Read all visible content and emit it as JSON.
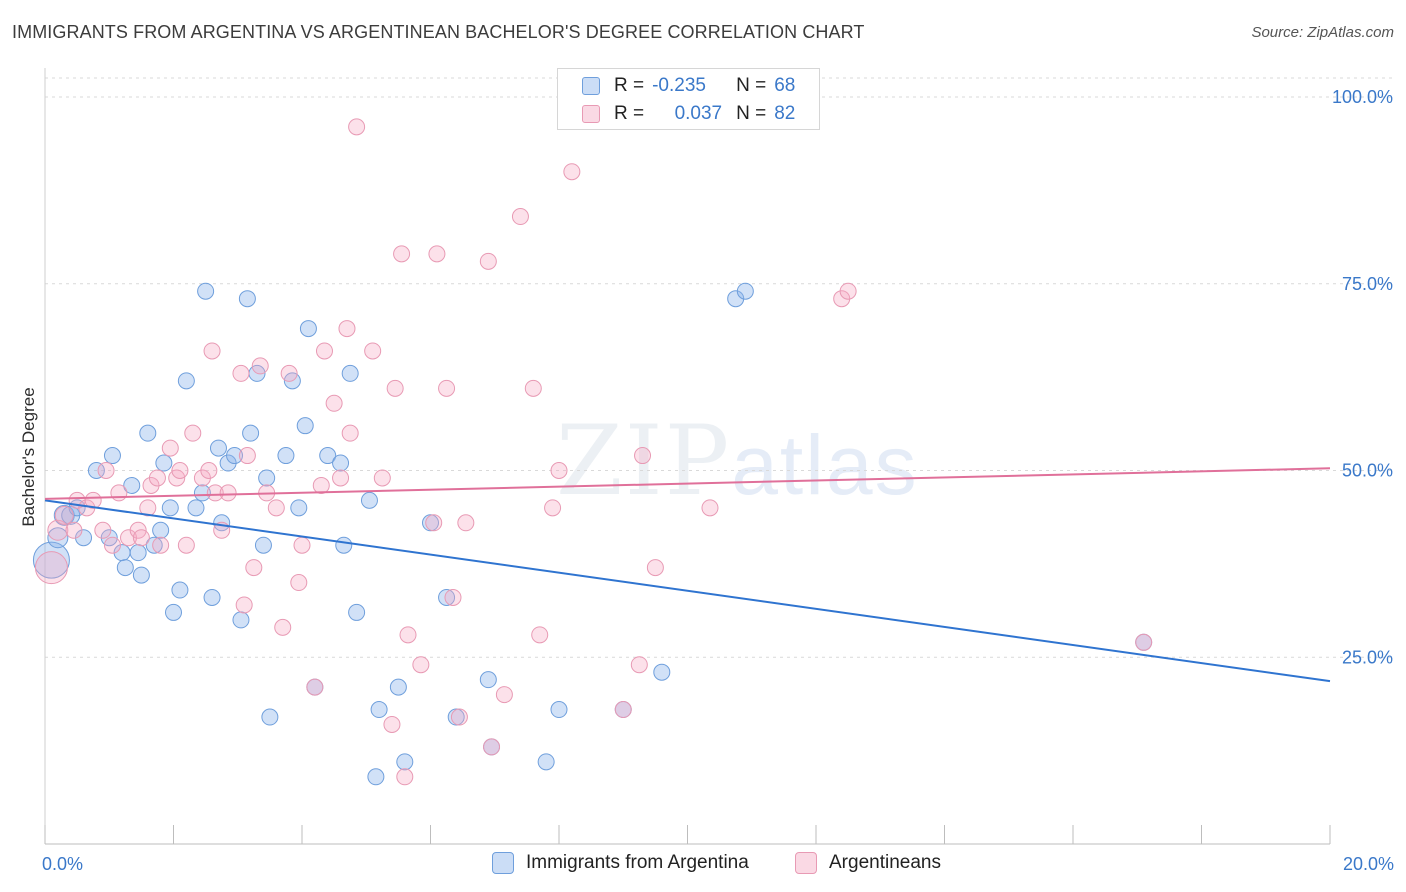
{
  "header": {
    "title": "IMMIGRANTS FROM ARGENTINA VS ARGENTINEAN BACHELOR'S DEGREE CORRELATION CHART",
    "source": "Source: ZipAtlas.com"
  },
  "watermark": {
    "zip": "ZIP",
    "atlas": "atlas"
  },
  "legend": {
    "rows": [
      {
        "r_label": "R =",
        "r_value": "-0.235",
        "n_label": "N =",
        "n_value": "68"
      },
      {
        "r_label": "R =",
        "r_value": "0.037",
        "n_label": "N =",
        "n_value": "82"
      }
    ]
  },
  "bottom_legend": {
    "series1": "Immigrants from Argentina",
    "series2": "Argentineans"
  },
  "colors": {
    "blue_fill": "rgba(140,180,235,0.40)",
    "blue_stroke": "#6f9fdc",
    "blue_line": "#2f74d0",
    "pink_fill": "rgba(245,170,195,0.35)",
    "pink_stroke": "#e89ab4",
    "pink_line": "#e0709a",
    "axis_text": "#3a78c9"
  },
  "chart_data": {
    "type": "scatter",
    "title": "IMMIGRANTS FROM ARGENTINA VS ARGENTINEAN BACHELOR'S DEGREE CORRELATION CHART",
    "xlabel": "",
    "ylabel": "Bachelor's Degree",
    "xlim": [
      0,
      20
    ],
    "ylim": [
      0,
      102
    ],
    "x_tick_labels": [
      "0.0%",
      "20.0%"
    ],
    "y_ticks": [
      {
        "value": 25,
        "label": "25.0%"
      },
      {
        "value": 50,
        "label": "50.0%"
      },
      {
        "value": 75,
        "label": "75.0%"
      },
      {
        "value": 100,
        "label": "100.0%"
      }
    ],
    "grid": true,
    "series": [
      {
        "name": "Immigrants from Argentina",
        "r": -0.235,
        "n": 68,
        "trend": {
          "x": [
            0,
            20
          ],
          "y": [
            46.0,
            21.8
          ]
        },
        "points": [
          [
            0.1,
            38,
            18
          ],
          [
            0.2,
            41,
            10
          ],
          [
            0.3,
            44,
            10
          ],
          [
            0.4,
            44,
            9
          ],
          [
            0.5,
            45,
            8
          ],
          [
            0.6,
            41,
            8
          ],
          [
            0.8,
            50,
            8
          ],
          [
            1.0,
            41,
            8
          ],
          [
            1.05,
            52,
            8
          ],
          [
            1.2,
            39,
            8
          ],
          [
            1.25,
            37,
            8
          ],
          [
            1.35,
            48,
            8
          ],
          [
            1.45,
            39,
            8
          ],
          [
            1.5,
            36,
            8
          ],
          [
            1.6,
            55,
            8
          ],
          [
            1.7,
            40,
            8
          ],
          [
            1.8,
            42,
            8
          ],
          [
            1.85,
            51,
            8
          ],
          [
            1.95,
            45,
            8
          ],
          [
            2.0,
            31,
            8
          ],
          [
            2.1,
            34,
            8
          ],
          [
            2.2,
            62,
            8
          ],
          [
            2.35,
            45,
            8
          ],
          [
            2.45,
            47,
            8
          ],
          [
            2.5,
            74,
            8
          ],
          [
            2.6,
            33,
            8
          ],
          [
            2.7,
            53,
            8
          ],
          [
            2.75,
            43,
            8
          ],
          [
            2.85,
            51,
            8
          ],
          [
            2.95,
            52,
            8
          ],
          [
            3.05,
            30,
            8
          ],
          [
            3.15,
            73,
            8
          ],
          [
            3.2,
            55,
            8
          ],
          [
            3.3,
            63,
            8
          ],
          [
            3.4,
            40,
            8
          ],
          [
            3.45,
            49,
            8
          ],
          [
            3.5,
            17,
            8
          ],
          [
            3.75,
            52,
            8
          ],
          [
            3.85,
            62,
            8
          ],
          [
            3.95,
            45,
            8
          ],
          [
            4.05,
            56,
            8
          ],
          [
            4.1,
            69,
            8
          ],
          [
            4.2,
            21,
            8
          ],
          [
            4.4,
            52,
            8
          ],
          [
            4.6,
            51,
            8
          ],
          [
            4.65,
            40,
            8
          ],
          [
            4.75,
            63,
            8
          ],
          [
            4.85,
            31,
            8
          ],
          [
            5.05,
            46,
            8
          ],
          [
            5.15,
            9,
            8
          ],
          [
            5.2,
            18,
            8
          ],
          [
            5.5,
            21,
            8
          ],
          [
            5.6,
            11,
            8
          ],
          [
            6.0,
            43,
            8
          ],
          [
            6.25,
            33,
            8
          ],
          [
            6.4,
            17,
            8
          ],
          [
            6.9,
            22,
            8
          ],
          [
            6.95,
            13,
            8
          ],
          [
            7.8,
            11,
            8
          ],
          [
            8.0,
            18,
            8
          ],
          [
            9.0,
            18,
            8
          ],
          [
            9.6,
            23,
            8
          ],
          [
            10.75,
            73,
            8
          ],
          [
            10.9,
            74,
            8
          ],
          [
            17.1,
            27,
            8
          ]
        ]
      },
      {
        "name": "Argentineans",
        "r": 0.037,
        "n": 82,
        "trend": {
          "x": [
            0,
            20
          ],
          "y": [
            46.2,
            50.3
          ]
        },
        "points": [
          [
            0.1,
            37,
            16
          ],
          [
            0.2,
            42,
            10
          ],
          [
            0.3,
            44,
            9
          ],
          [
            0.45,
            42,
            8
          ],
          [
            0.5,
            46,
            8
          ],
          [
            0.65,
            45,
            8
          ],
          [
            0.75,
            46,
            8
          ],
          [
            0.9,
            42,
            8
          ],
          [
            0.95,
            50,
            8
          ],
          [
            1.05,
            40,
            8
          ],
          [
            1.15,
            47,
            8
          ],
          [
            1.3,
            41,
            8
          ],
          [
            1.45,
            42,
            8
          ],
          [
            1.5,
            41,
            8
          ],
          [
            1.6,
            45,
            8
          ],
          [
            1.65,
            48,
            8
          ],
          [
            1.75,
            49,
            8
          ],
          [
            1.8,
            40,
            8
          ],
          [
            1.95,
            53,
            8
          ],
          [
            2.05,
            49,
            8
          ],
          [
            2.1,
            50,
            8
          ],
          [
            2.2,
            40,
            8
          ],
          [
            2.3,
            55,
            8
          ],
          [
            2.45,
            49,
            8
          ],
          [
            2.55,
            50,
            8
          ],
          [
            2.6,
            66,
            8
          ],
          [
            2.65,
            47,
            8
          ],
          [
            2.75,
            42,
            8
          ],
          [
            2.85,
            47,
            8
          ],
          [
            3.05,
            63,
            8
          ],
          [
            3.1,
            32,
            8
          ],
          [
            3.15,
            52,
            8
          ],
          [
            3.25,
            37,
            8
          ],
          [
            3.35,
            64,
            8
          ],
          [
            3.45,
            47,
            8
          ],
          [
            3.6,
            45,
            8
          ],
          [
            3.7,
            29,
            8
          ],
          [
            3.8,
            63,
            8
          ],
          [
            3.95,
            35,
            8
          ],
          [
            4.0,
            40,
            8
          ],
          [
            4.2,
            21,
            8
          ],
          [
            4.3,
            48,
            8
          ],
          [
            4.35,
            66,
            8
          ],
          [
            4.5,
            59,
            8
          ],
          [
            4.6,
            49,
            8
          ],
          [
            4.7,
            69,
            8
          ],
          [
            4.75,
            55,
            8
          ],
          [
            4.85,
            96,
            8
          ],
          [
            5.1,
            66,
            8
          ],
          [
            5.25,
            49,
            8
          ],
          [
            5.4,
            16,
            8
          ],
          [
            5.45,
            61,
            8
          ],
          [
            5.55,
            79,
            8
          ],
          [
            5.6,
            9,
            8
          ],
          [
            5.65,
            28,
            8
          ],
          [
            5.85,
            24,
            8
          ],
          [
            6.05,
            43,
            8
          ],
          [
            6.1,
            79,
            8
          ],
          [
            6.25,
            61,
            8
          ],
          [
            6.35,
            33,
            8
          ],
          [
            6.45,
            17,
            8
          ],
          [
            6.55,
            43,
            8
          ],
          [
            6.9,
            78,
            8
          ],
          [
            6.95,
            13,
            8
          ],
          [
            7.15,
            20,
            8
          ],
          [
            7.4,
            84,
            8
          ],
          [
            7.6,
            61,
            8
          ],
          [
            7.7,
            28,
            8
          ],
          [
            7.9,
            45,
            8
          ],
          [
            8.0,
            50,
            8
          ],
          [
            8.2,
            90,
            8
          ],
          [
            9.0,
            18,
            8
          ],
          [
            9.25,
            24,
            8
          ],
          [
            9.3,
            52,
            8
          ],
          [
            9.5,
            37,
            8
          ],
          [
            10.35,
            45,
            8
          ],
          [
            12.4,
            73,
            8
          ],
          [
            12.5,
            74,
            8
          ],
          [
            17.1,
            27,
            8
          ]
        ]
      }
    ]
  }
}
